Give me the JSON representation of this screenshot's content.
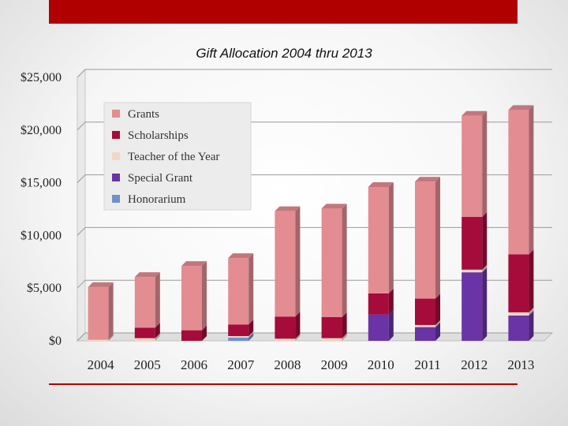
{
  "slide": {
    "title": "Gift Allocation 2004 thru 2013"
  },
  "chart_data": {
    "type": "bar",
    "stacked": true,
    "title": "Gift Allocation 2004 thru 2013",
    "xlabel": "",
    "ylabel": "",
    "ylim": [
      0,
      25000
    ],
    "yticks": [
      0,
      5000,
      10000,
      15000,
      20000,
      25000
    ],
    "ytick_labels": [
      "$0",
      "$5,000",
      "$10,000",
      "$15,000",
      "$20,000",
      "$25,000"
    ],
    "grid": true,
    "legend_position": "top-left",
    "categories": [
      "2004",
      "2005",
      "2006",
      "2007",
      "2008",
      "2009",
      "2010",
      "2011",
      "2012",
      "2013"
    ],
    "series": [
      {
        "name": "Honorarium",
        "color": "#6f8fd0",
        "values": [
          0,
          0,
          0,
          300,
          0,
          0,
          0,
          0,
          0,
          0
        ]
      },
      {
        "name": "Special Grant",
        "color": "#6a33a6",
        "values": [
          0,
          0,
          0,
          0,
          0,
          0,
          2500,
          1300,
          6500,
          2400
        ]
      },
      {
        "name": "Teacher of the Year",
        "color": "#f2d8c2",
        "values": [
          100,
          250,
          0,
          150,
          200,
          250,
          0,
          200,
          250,
          300
        ]
      },
      {
        "name": "Scholarships",
        "color": "#a50b3b",
        "values": [
          0,
          1000,
          1000,
          1100,
          2100,
          2000,
          2000,
          2500,
          5000,
          5500
        ]
      },
      {
        "name": "Grants",
        "color": "#e38c92",
        "values": [
          5000,
          4800,
          6100,
          6300,
          10000,
          10300,
          10100,
          11100,
          9600,
          13700
        ]
      }
    ],
    "legend_order": [
      "Grants",
      "Scholarships",
      "Teacher of the Year",
      "Special Grant",
      "Honorarium"
    ]
  }
}
